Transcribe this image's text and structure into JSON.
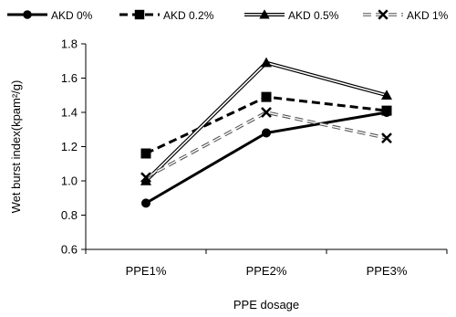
{
  "chart_data": {
    "type": "line",
    "title": "",
    "xlabel": "PPE dosage",
    "ylabel": "Wet burst index(kpam²/g)",
    "categories": [
      "PPE1%",
      "PPE2%",
      "PPE3%"
    ],
    "ylim": [
      0.6,
      1.8
    ],
    "yticks": [
      "0.6",
      "0.8",
      "1.0",
      "1.2",
      "1.4",
      "1.6",
      "1.8"
    ],
    "grid": false,
    "legend_position": "top",
    "series": [
      {
        "name": "AKD 0%",
        "values": [
          0.87,
          1.28,
          1.4
        ],
        "marker": "circle",
        "line": "solid-thick",
        "color": "#000000"
      },
      {
        "name": "AKD 0.2%",
        "values": [
          1.16,
          1.49,
          1.41
        ],
        "marker": "square",
        "line": "dashed-thick",
        "color": "#000000"
      },
      {
        "name": "AKD 0.5%",
        "values": [
          1.0,
          1.69,
          1.5
        ],
        "marker": "triangle",
        "line": "double",
        "color": "#000000"
      },
      {
        "name": "AKD 1%",
        "values": [
          1.02,
          1.4,
          1.25
        ],
        "marker": "x",
        "line": "dashed-double",
        "color": "#000000"
      }
    ]
  }
}
